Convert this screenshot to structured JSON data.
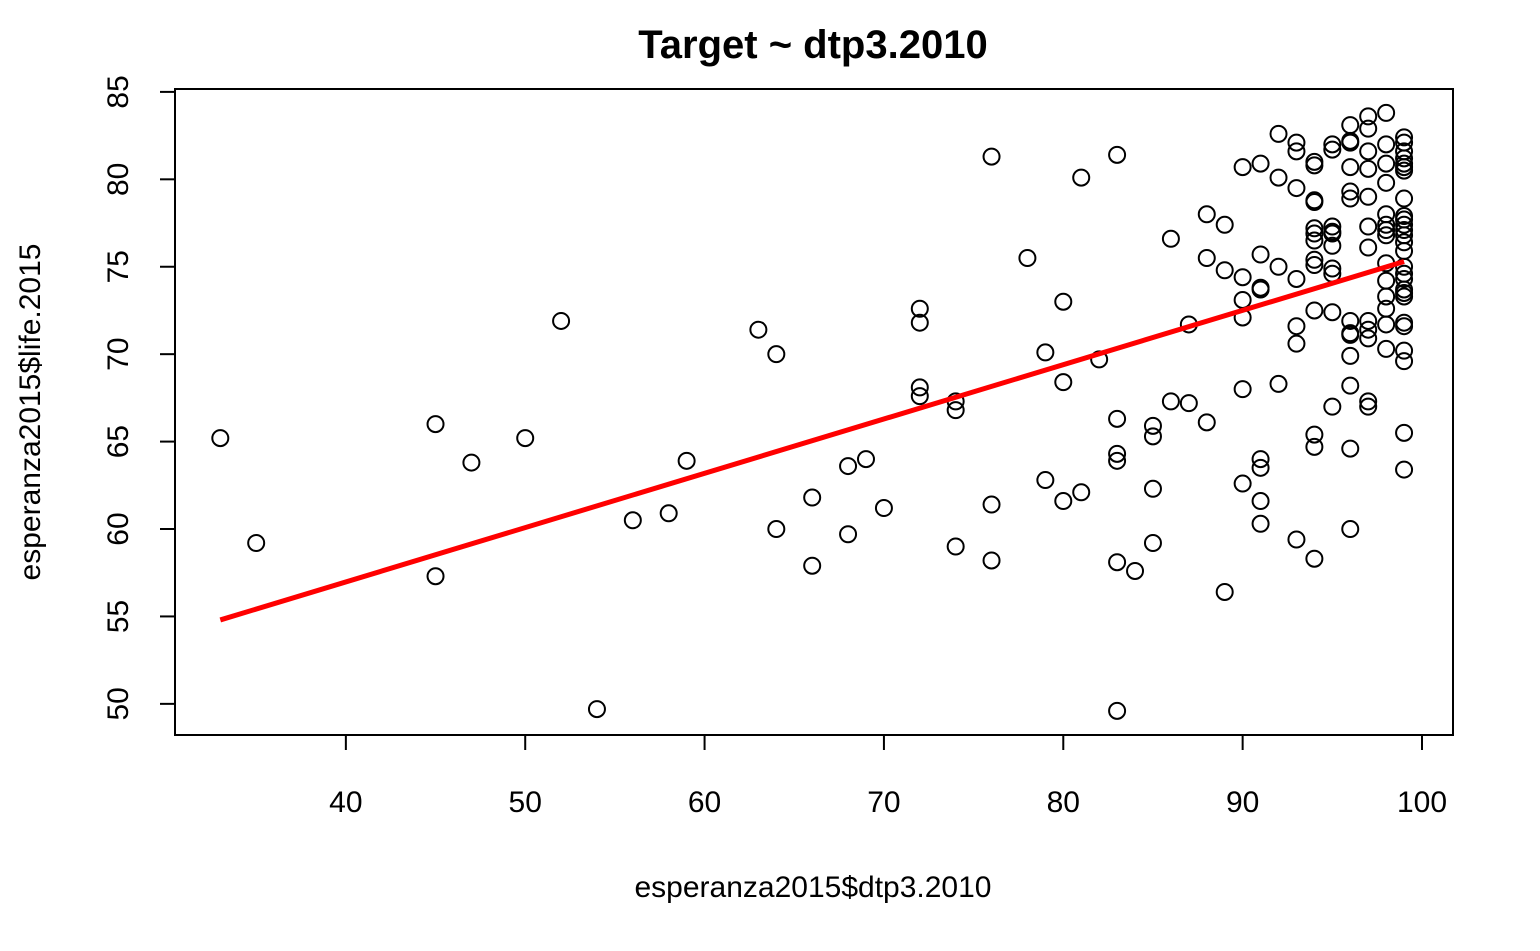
{
  "colors": {
    "points": "#000000",
    "fit_line": "#ff0000",
    "background": "#ffffff"
  },
  "chart_data": {
    "type": "scatter",
    "title": "Target ~ dtp3.2010",
    "xlabel": "esperanza2015$dtp3.2010",
    "ylabel": "esperanza2015$life.2015",
    "xlim": [
      30,
      100
    ],
    "ylim": [
      49.5,
      85
    ],
    "xticks": [
      40,
      50,
      60,
      70,
      80,
      90,
      100
    ],
    "yticks": [
      50,
      55,
      60,
      65,
      70,
      75,
      80,
      85
    ],
    "marker": "open-circle",
    "grid": false,
    "fit_line": {
      "x": [
        33,
        99
      ],
      "y": [
        54.8,
        75.3
      ]
    },
    "points": [
      [
        33,
        65.2
      ],
      [
        35,
        59.2
      ],
      [
        45,
        66.0
      ],
      [
        45,
        57.3
      ],
      [
        47,
        63.8
      ],
      [
        50,
        65.2
      ],
      [
        52,
        71.9
      ],
      [
        54,
        49.7
      ],
      [
        56,
        60.5
      ],
      [
        58,
        60.9
      ],
      [
        59,
        63.9
      ],
      [
        63,
        71.4
      ],
      [
        64,
        70.0
      ],
      [
        64,
        60.0
      ],
      [
        66,
        61.8
      ],
      [
        66,
        57.9
      ],
      [
        68,
        63.6
      ],
      [
        68,
        59.7
      ],
      [
        69,
        64.0
      ],
      [
        70,
        61.2
      ],
      [
        72,
        72.6
      ],
      [
        72,
        71.8
      ],
      [
        72,
        68.1
      ],
      [
        72,
        67.6
      ],
      [
        74,
        67.3
      ],
      [
        74,
        66.8
      ],
      [
        74,
        59.0
      ],
      [
        76,
        81.3
      ],
      [
        76,
        61.4
      ],
      [
        76,
        58.2
      ],
      [
        78,
        75.5
      ],
      [
        79,
        70.1
      ],
      [
        79,
        62.8
      ],
      [
        80,
        73.0
      ],
      [
        80,
        68.4
      ],
      [
        80,
        61.6
      ],
      [
        81,
        80.1
      ],
      [
        81,
        62.1
      ],
      [
        82,
        69.7
      ],
      [
        83,
        81.4
      ],
      [
        83,
        66.3
      ],
      [
        83,
        64.3
      ],
      [
        83,
        63.9
      ],
      [
        83,
        58.1
      ],
      [
        83,
        49.6
      ],
      [
        84,
        57.6
      ],
      [
        85,
        65.9
      ],
      [
        85,
        65.3
      ],
      [
        85,
        62.3
      ],
      [
        85,
        59.2
      ],
      [
        86,
        76.6
      ],
      [
        86,
        67.3
      ],
      [
        87,
        71.7
      ],
      [
        87,
        67.2
      ],
      [
        88,
        78.0
      ],
      [
        88,
        75.5
      ],
      [
        88,
        66.1
      ],
      [
        89,
        77.4
      ],
      [
        89,
        74.8
      ],
      [
        89,
        56.4
      ],
      [
        90,
        80.7
      ],
      [
        90,
        74.4
      ],
      [
        90,
        73.1
      ],
      [
        90,
        72.1
      ],
      [
        90,
        68.0
      ],
      [
        90,
        62.6
      ],
      [
        91,
        80.9
      ],
      [
        91,
        75.7
      ],
      [
        91,
        73.8
      ],
      [
        91,
        73.7
      ],
      [
        91,
        64.0
      ],
      [
        91,
        63.5
      ],
      [
        91,
        61.6
      ],
      [
        91,
        60.3
      ],
      [
        92,
        82.6
      ],
      [
        92,
        80.1
      ],
      [
        92,
        75.0
      ],
      [
        92,
        68.3
      ],
      [
        93,
        82.1
      ],
      [
        93,
        81.6
      ],
      [
        93,
        79.5
      ],
      [
        93,
        74.3
      ],
      [
        93,
        71.6
      ],
      [
        93,
        70.6
      ],
      [
        93,
        59.4
      ],
      [
        94,
        81.0
      ],
      [
        94,
        80.8
      ],
      [
        94,
        78.8
      ],
      [
        94,
        78.7
      ],
      [
        94,
        77.2
      ],
      [
        94,
        76.9
      ],
      [
        94,
        76.5
      ],
      [
        94,
        75.4
      ],
      [
        94,
        75.1
      ],
      [
        94,
        72.5
      ],
      [
        94,
        65.4
      ],
      [
        94,
        64.7
      ],
      [
        94,
        58.3
      ],
      [
        95,
        82.0
      ],
      [
        95,
        81.7
      ],
      [
        95,
        77.3
      ],
      [
        95,
        77.0
      ],
      [
        95,
        76.9
      ],
      [
        95,
        76.2
      ],
      [
        95,
        74.9
      ],
      [
        95,
        74.6
      ],
      [
        95,
        72.4
      ],
      [
        95,
        67.0
      ],
      [
        96,
        83.1
      ],
      [
        96,
        82.2
      ],
      [
        96,
        82.1
      ],
      [
        96,
        80.7
      ],
      [
        96,
        79.3
      ],
      [
        96,
        78.9
      ],
      [
        96,
        71.9
      ],
      [
        96,
        71.2
      ],
      [
        96,
        71.1
      ],
      [
        96,
        69.9
      ],
      [
        96,
        68.2
      ],
      [
        96,
        64.6
      ],
      [
        96,
        60.0
      ],
      [
        97,
        83.6
      ],
      [
        97,
        82.9
      ],
      [
        97,
        81.6
      ],
      [
        97,
        80.6
      ],
      [
        97,
        79.0
      ],
      [
        97,
        77.3
      ],
      [
        97,
        76.1
      ],
      [
        97,
        71.9
      ],
      [
        97,
        71.4
      ],
      [
        97,
        70.9
      ],
      [
        97,
        67.3
      ],
      [
        97,
        67.0
      ],
      [
        98,
        83.8
      ],
      [
        98,
        82.0
      ],
      [
        98,
        80.9
      ],
      [
        98,
        79.8
      ],
      [
        98,
        78.0
      ],
      [
        98,
        77.4
      ],
      [
        98,
        77.1
      ],
      [
        98,
        76.8
      ],
      [
        98,
        75.2
      ],
      [
        98,
        74.2
      ],
      [
        98,
        73.3
      ],
      [
        98,
        72.6
      ],
      [
        98,
        71.7
      ],
      [
        98,
        70.3
      ],
      [
        99,
        82.4
      ],
      [
        99,
        82.1
      ],
      [
        99,
        81.6
      ],
      [
        99,
        81.2
      ],
      [
        99,
        80.9
      ],
      [
        99,
        80.7
      ],
      [
        99,
        80.5
      ],
      [
        99,
        78.9
      ],
      [
        99,
        77.9
      ],
      [
        99,
        77.7
      ],
      [
        99,
        77.4
      ],
      [
        99,
        77.1
      ],
      [
        99,
        76.8
      ],
      [
        99,
        76.4
      ],
      [
        99,
        75.9
      ],
      [
        99,
        75.0
      ],
      [
        99,
        74.6
      ],
      [
        99,
        74.3
      ],
      [
        99,
        73.7
      ],
      [
        99,
        73.5
      ],
      [
        99,
        73.3
      ],
      [
        99,
        71.8
      ],
      [
        99,
        71.6
      ],
      [
        99,
        70.2
      ],
      [
        99,
        69.6
      ],
      [
        99,
        65.5
      ],
      [
        99,
        63.4
      ]
    ]
  }
}
